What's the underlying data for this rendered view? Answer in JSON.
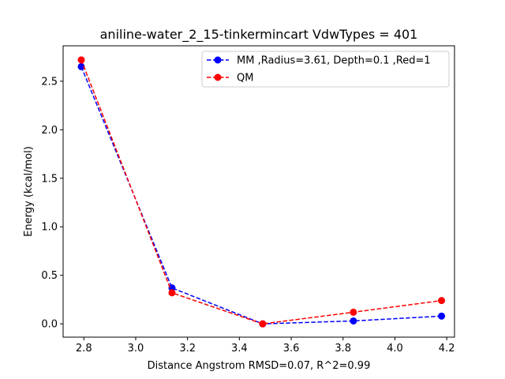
{
  "chart_data": {
    "type": "line",
    "title": "aniline-water_2_15-tinkermincart VdwTypes = 401",
    "xlabel": "Distance Angstrom RMSD=0.07, R^2=0.99",
    "ylabel": "Energy (kcal/mol)",
    "xlim": [
      2.72,
      4.23
    ],
    "ylim": [
      -0.137,
      2.865
    ],
    "xticks": [
      "2.8",
      "3.0",
      "3.2",
      "3.4",
      "3.6",
      "3.8",
      "4.0",
      "4.2"
    ],
    "yticks": [
      "0.0",
      "0.5",
      "1.0",
      "1.5",
      "2.0",
      "2.5"
    ],
    "grid": false,
    "legend_position": "top-right",
    "series": [
      {
        "name": "MM ,Radius=3.61, Depth=0.1 ,Red=1",
        "color": "#0000ff",
        "x": [
          2.79,
          3.14,
          3.49,
          3.84,
          4.18
        ],
        "y": [
          2.65,
          0.37,
          0.0,
          0.03,
          0.08
        ]
      },
      {
        "name": "QM",
        "color": "#ff0000",
        "x": [
          2.79,
          3.14,
          3.49,
          3.84,
          4.18
        ],
        "y": [
          2.72,
          0.32,
          0.0,
          0.12,
          0.24
        ]
      }
    ]
  }
}
